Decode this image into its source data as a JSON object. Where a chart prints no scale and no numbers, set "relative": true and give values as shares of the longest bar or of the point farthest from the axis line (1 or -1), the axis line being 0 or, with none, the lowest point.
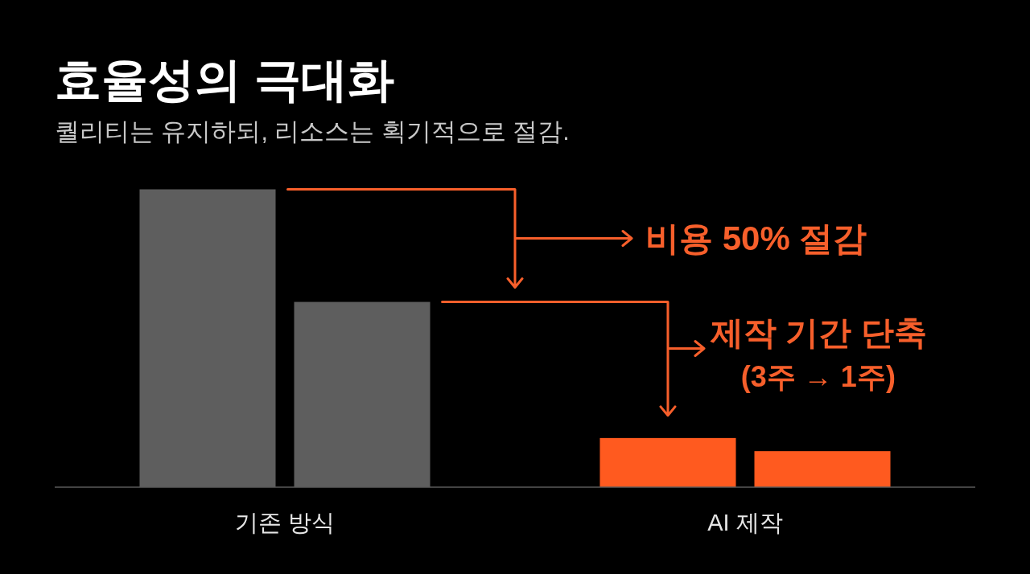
{
  "chart_data": {
    "type": "bar",
    "title": "효율성의 극대화",
    "subtitle": "퀄리티는 유지하되, 리소스는 획기적으로 절감.",
    "categories": [
      "기존 방식",
      "AI 제작"
    ],
    "relative": true,
    "series": [
      {
        "colors": [
          "#5e5e5e",
          "#ff5a1f"
        ],
        "values": [
          1,
          0.165
        ]
      },
      {
        "colors": [
          "#5e5e5e",
          "#ff5a1f"
        ],
        "values": [
          0.622,
          0.121
        ]
      }
    ],
    "annotations": [
      "비용 50% 절감",
      "제작 기간 단축",
      "(3주 → 1주)"
    ]
  }
}
